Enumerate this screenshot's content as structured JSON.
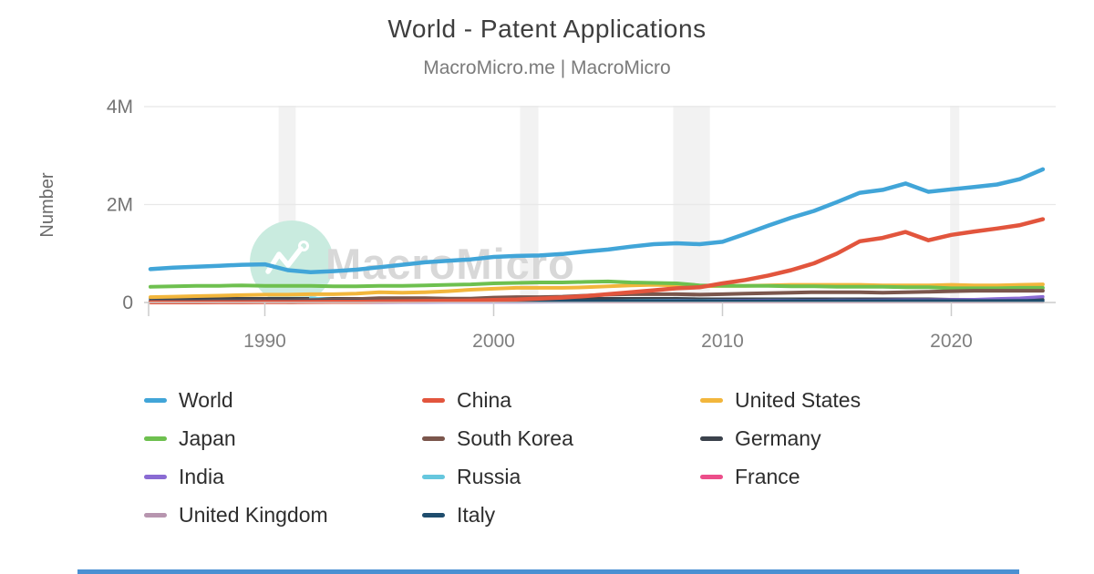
{
  "header": {
    "title": "World - Patent Applications",
    "subtitle": "MacroMicro.me | MacroMicro"
  },
  "watermark": {
    "text": "MacroMicro",
    "icon": "macromicro-logo-icon"
  },
  "colors": {
    "recession_band": "#f2f2f2",
    "grid": "#e8e8e8",
    "axis": "#cccccc",
    "tick_label": "#7f7f7f",
    "y_tick_label": "#737373",
    "watermark_circle": "#c9ebdf",
    "watermark_text": "#d8d8d8",
    "footer_bar": "#4a90d2"
  },
  "chart_data": {
    "type": "line",
    "title": "World - Patent Applications",
    "source_caption": "MacroMicro.me | MacroMicro",
    "xlabel": "",
    "ylabel": "Number",
    "unit": "millions",
    "grid": "horizontal",
    "legend_position": "bottom",
    "x_range": [
      1985,
      2024
    ],
    "ylim": [
      0,
      4
    ],
    "y_ticks": [
      {
        "value": 0,
        "label": "0"
      },
      {
        "value": 2,
        "label": "2M"
      },
      {
        "value": 4,
        "label": "4M"
      }
    ],
    "x_ticks": [
      {
        "value": 1990,
        "label": "1990"
      },
      {
        "value": 2000,
        "label": "2000"
      },
      {
        "value": 2010,
        "label": "2010"
      },
      {
        "value": 2020,
        "label": "2020"
      }
    ],
    "recession_bands": [
      [
        1990.6,
        1991.35
      ],
      [
        2001.15,
        2001.95
      ],
      [
        2007.85,
        2009.45
      ],
      [
        2019.95,
        2020.35
      ]
    ],
    "years": [
      1985,
      1986,
      1987,
      1988,
      1989,
      1990,
      1991,
      1992,
      1993,
      1994,
      1995,
      1996,
      1997,
      1998,
      1999,
      2000,
      2001,
      2002,
      2003,
      2004,
      2005,
      2006,
      2007,
      2008,
      2009,
      2010,
      2011,
      2012,
      2013,
      2014,
      2015,
      2016,
      2017,
      2018,
      2019,
      2020,
      2021,
      2022,
      2023,
      2024
    ],
    "series": [
      {
        "name": "World",
        "color": "#41a5d8",
        "values": [
          0.68,
          0.71,
          0.73,
          0.75,
          0.77,
          0.78,
          0.66,
          0.62,
          0.64,
          0.67,
          0.72,
          0.77,
          0.82,
          0.85,
          0.88,
          0.93,
          0.95,
          0.96,
          0.99,
          1.04,
          1.08,
          1.14,
          1.19,
          1.21,
          1.19,
          1.24,
          1.4,
          1.57,
          1.73,
          1.87,
          2.05,
          2.24,
          2.3,
          2.43,
          2.26,
          2.31,
          2.36,
          2.41,
          2.52,
          2.72
        ]
      },
      {
        "name": "China",
        "color": "#e2553d",
        "values": [
          0.005,
          0.005,
          0.006,
          0.007,
          0.008,
          0.01,
          0.01,
          0.012,
          0.013,
          0.015,
          0.02,
          0.025,
          0.03,
          0.035,
          0.04,
          0.05,
          0.06,
          0.08,
          0.1,
          0.13,
          0.17,
          0.21,
          0.25,
          0.29,
          0.31,
          0.39,
          0.46,
          0.55,
          0.66,
          0.8,
          1.0,
          1.25,
          1.32,
          1.44,
          1.27,
          1.38,
          1.45,
          1.51,
          1.58,
          1.7
        ]
      },
      {
        "name": "United States",
        "color": "#f2b63c",
        "values": [
          0.11,
          0.12,
          0.13,
          0.14,
          0.15,
          0.16,
          0.16,
          0.17,
          0.17,
          0.18,
          0.21,
          0.2,
          0.21,
          0.23,
          0.26,
          0.28,
          0.3,
          0.3,
          0.3,
          0.31,
          0.33,
          0.35,
          0.36,
          0.35,
          0.33,
          0.34,
          0.34,
          0.35,
          0.36,
          0.36,
          0.36,
          0.36,
          0.35,
          0.35,
          0.35,
          0.36,
          0.35,
          0.35,
          0.36,
          0.37
        ]
      },
      {
        "name": "Japan",
        "color": "#6ec04f",
        "values": [
          0.32,
          0.33,
          0.34,
          0.34,
          0.35,
          0.34,
          0.34,
          0.34,
          0.33,
          0.33,
          0.34,
          0.34,
          0.35,
          0.36,
          0.37,
          0.39,
          0.4,
          0.41,
          0.41,
          0.42,
          0.43,
          0.41,
          0.4,
          0.39,
          0.35,
          0.34,
          0.34,
          0.34,
          0.33,
          0.33,
          0.32,
          0.32,
          0.32,
          0.31,
          0.31,
          0.29,
          0.29,
          0.29,
          0.3,
          0.3
        ]
      },
      {
        "name": "South Korea",
        "color": "#7b564c",
        "values": [
          0.02,
          0.03,
          0.03,
          0.04,
          0.04,
          0.04,
          0.04,
          0.05,
          0.06,
          0.07,
          0.09,
          0.09,
          0.09,
          0.08,
          0.08,
          0.1,
          0.11,
          0.11,
          0.12,
          0.14,
          0.16,
          0.17,
          0.17,
          0.17,
          0.16,
          0.17,
          0.18,
          0.19,
          0.2,
          0.21,
          0.21,
          0.21,
          0.2,
          0.21,
          0.22,
          0.23,
          0.24,
          0.24,
          0.24,
          0.24
        ]
      },
      {
        "name": "Germany",
        "color": "#3b424c",
        "values": [
          0.08,
          0.08,
          0.08,
          0.08,
          0.08,
          0.08,
          0.08,
          0.08,
          0.08,
          0.08,
          0.08,
          0.08,
          0.08,
          0.08,
          0.08,
          0.08,
          0.08,
          0.08,
          0.08,
          0.08,
          0.08,
          0.08,
          0.08,
          0.08,
          0.07,
          0.07,
          0.07,
          0.07,
          0.07,
          0.07,
          0.07,
          0.07,
          0.07,
          0.07,
          0.07,
          0.06,
          0.06,
          0.06,
          0.06,
          0.06
        ]
      },
      {
        "name": "India",
        "color": "#8a6bd3",
        "values": [
          0.003,
          0.003,
          0.003,
          0.004,
          0.004,
          0.004,
          0.004,
          0.004,
          0.004,
          0.005,
          0.006,
          0.007,
          0.008,
          0.009,
          0.01,
          0.01,
          0.01,
          0.011,
          0.013,
          0.017,
          0.024,
          0.028,
          0.035,
          0.037,
          0.034,
          0.039,
          0.042,
          0.043,
          0.043,
          0.042,
          0.045,
          0.045,
          0.046,
          0.05,
          0.053,
          0.056,
          0.061,
          0.077,
          0.09,
          0.12
        ]
      },
      {
        "name": "Russia",
        "color": "#66c7de",
        "values": [
          null,
          null,
          null,
          null,
          null,
          null,
          null,
          0.09,
          0.06,
          0.04,
          0.033,
          0.03,
          0.028,
          0.028,
          0.03,
          0.032,
          0.03,
          0.029,
          0.03,
          0.03,
          0.032,
          0.037,
          0.039,
          0.041,
          0.038,
          0.042,
          0.041,
          0.044,
          0.044,
          0.04,
          0.045,
          0.041,
          0.036,
          0.037,
          0.035,
          0.034,
          0.03,
          0.027,
          0.027,
          0.028
        ]
      },
      {
        "name": "France",
        "color": "#ec4e8a",
        "values": [
          0.012,
          0.012,
          0.012,
          0.013,
          0.013,
          0.013,
          0.013,
          0.013,
          0.013,
          0.013,
          0.013,
          0.013,
          0.013,
          0.014,
          0.014,
          0.014,
          0.014,
          0.014,
          0.014,
          0.014,
          0.014,
          0.014,
          0.014,
          0.015,
          0.015,
          0.015,
          0.015,
          0.015,
          0.015,
          0.015,
          0.015,
          0.015,
          0.015,
          0.015,
          0.015,
          0.015,
          0.015,
          0.015,
          0.016,
          0.016
        ]
      },
      {
        "name": "United Kingdom",
        "color": "#b795af",
        "values": [
          0.028,
          0.028,
          0.028,
          0.029,
          0.029,
          0.029,
          0.028,
          0.028,
          0.027,
          0.027,
          0.027,
          0.026,
          0.026,
          0.026,
          0.027,
          0.027,
          0.027,
          0.026,
          0.026,
          0.025,
          0.025,
          0.025,
          0.024,
          0.023,
          0.022,
          0.022,
          0.022,
          0.023,
          0.023,
          0.023,
          0.022,
          0.022,
          0.022,
          0.021,
          0.021,
          0.02,
          0.02,
          0.019,
          0.019,
          0.019
        ]
      },
      {
        "name": "Italy",
        "color": "#1f4d6d",
        "values": [
          0.03,
          0.03,
          0.03,
          0.031,
          0.031,
          0.031,
          0.031,
          0.031,
          0.031,
          0.031,
          0.032,
          0.032,
          0.032,
          0.032,
          0.032,
          0.033,
          0.033,
          0.033,
          0.033,
          0.034,
          0.034,
          0.034,
          0.034,
          0.034,
          0.033,
          0.034,
          0.034,
          0.034,
          0.035,
          0.035,
          0.035,
          0.035,
          0.035,
          0.035,
          0.035,
          0.035,
          0.036,
          0.036,
          0.037,
          0.038
        ]
      }
    ]
  }
}
